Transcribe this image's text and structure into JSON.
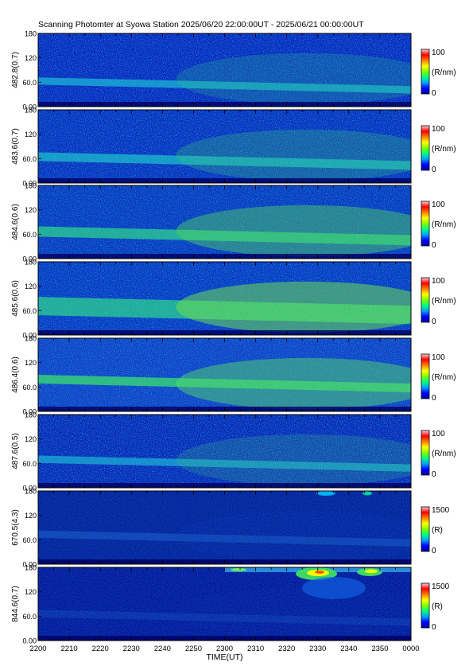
{
  "title": "Scanning Photomter at Syowa Station 2025/06/20 22:00:00UT - 2025/06/21 00:00:00UT",
  "chart_data": {
    "type": "heatmap",
    "title": "Scanning Photomter at Syowa Station 2025/06/20 22:00:00UT - 2025/06/21 00:00:00UT",
    "xlabel": "TIME(UT)",
    "x_ticks": [
      "2200",
      "2210",
      "2220",
      "2230",
      "2240",
      "2250",
      "2300",
      "2310",
      "2320",
      "2330",
      "2340",
      "2350",
      "0000"
    ],
    "y_ticks": [
      "0.00",
      "60.0",
      "120",
      "180"
    ],
    "ylim": [
      0,
      180
    ],
    "colormap": [
      "#0000a0",
      "#0000ff",
      "#00a0ff",
      "#00ff80",
      "#80ff00",
      "#ffff00",
      "#ff8000",
      "#ff0000",
      "#ffd0d0"
    ],
    "panels": [
      {
        "ylabel": "482.8(0.7)",
        "colorbar_max": "100",
        "colorbar_min": "0",
        "colorbar_unit": "(R/nm)"
      },
      {
        "ylabel": "483.6(0.7)",
        "colorbar_max": "100",
        "colorbar_min": "0",
        "colorbar_unit": "(R/nm)"
      },
      {
        "ylabel": "484.6(0.6)",
        "colorbar_max": "100",
        "colorbar_min": "0",
        "colorbar_unit": "(R/nm)"
      },
      {
        "ylabel": "485.6(0.6)",
        "colorbar_max": "100",
        "colorbar_min": "0",
        "colorbar_unit": "(R/nm)"
      },
      {
        "ylabel": "486.4(0.6)",
        "colorbar_max": "100",
        "colorbar_min": "0",
        "colorbar_unit": "(R/nm)"
      },
      {
        "ylabel": "487.6(0.5)",
        "colorbar_max": "100",
        "colorbar_min": "0",
        "colorbar_unit": "(R/nm)"
      },
      {
        "ylabel": "670.5(4.3)",
        "colorbar_max": "1500",
        "colorbar_min": "0",
        "colorbar_unit": "(R)"
      },
      {
        "ylabel": "844.6(0.7)",
        "colorbar_max": "1500",
        "colorbar_min": "0",
        "colorbar_unit": "(R)"
      }
    ]
  }
}
